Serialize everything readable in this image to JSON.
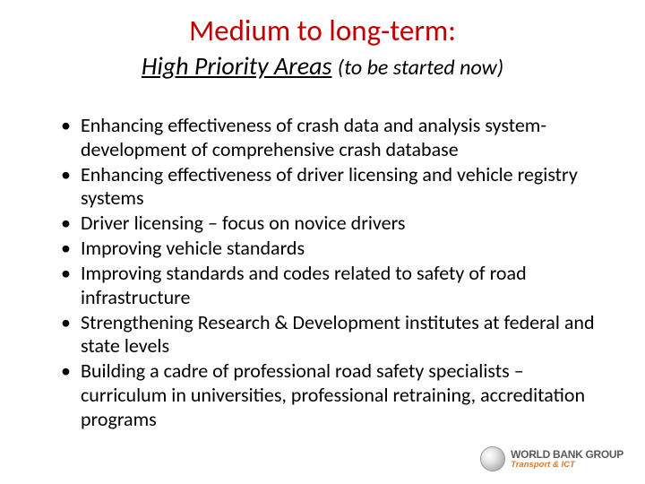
{
  "title": {
    "main": "Medium to long-term:",
    "main_color": "#c00000",
    "sub_underlined": "High Priority Areas",
    "sub_paren": "(to be started now)",
    "sub_color": "#000000"
  },
  "bullets": [
    "Enhancing effectiveness of crash data and analysis system- development of comprehensive crash database",
    "Enhancing effectiveness of driver licensing and vehicle registry systems",
    "Driver licensing – focus on novice drivers",
    "Improving vehicle standards",
    "Improving standards and codes related to safety of road infrastructure",
    "Strengthening Research & Development institutes at federal and state levels",
    "Building a cadre of professional road safety specialists – curriculum in universities, professional retraining, accreditation programs"
  ],
  "bullet_color": "#000000",
  "logo": {
    "main": "WORLD BANK GROUP",
    "sub": "Transport & ICT"
  },
  "background_color": "#ffffff"
}
